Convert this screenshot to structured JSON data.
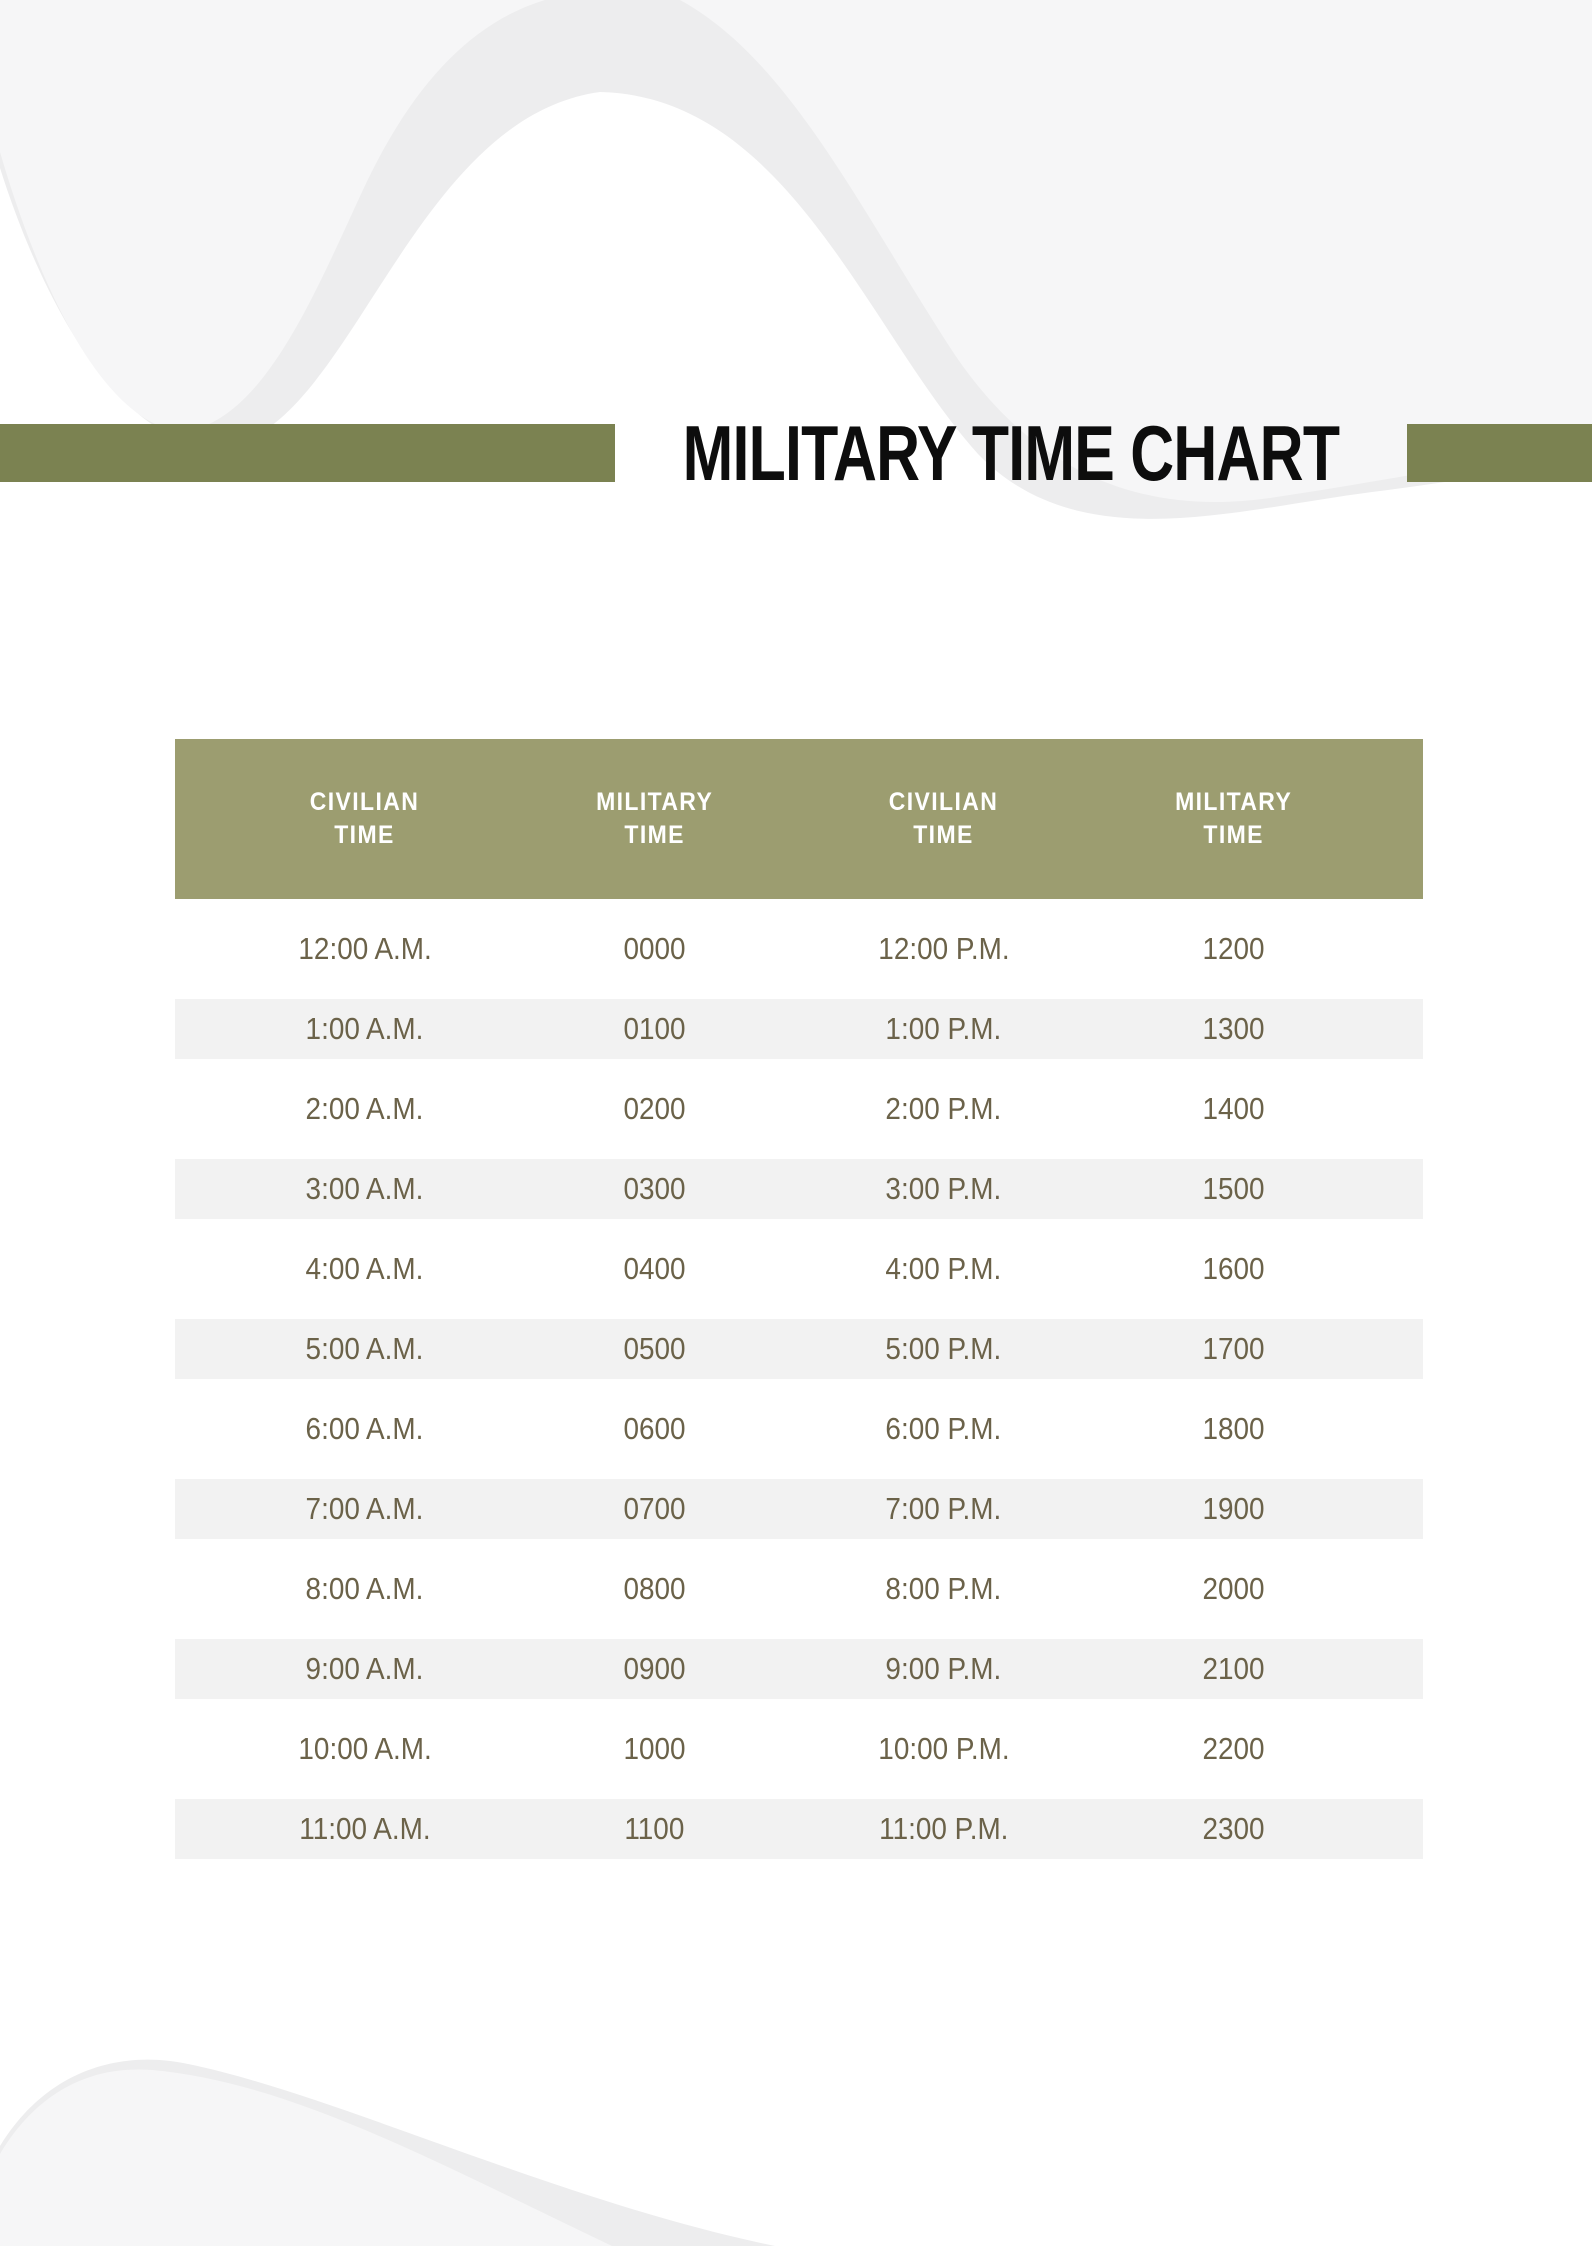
{
  "page": {
    "title": "MILITARY TIME CHART"
  },
  "table": {
    "headers": [
      "CIVILIAN\nTIME",
      "MILITARY\nTIME",
      "CIVILIAN\nTIME",
      "MILITARY\nTIME"
    ],
    "rows": [
      [
        "12:00 A.M.",
        "0000",
        "12:00 P.M.",
        "1200"
      ],
      [
        "1:00 A.M.",
        "0100",
        "1:00 P.M.",
        "1300"
      ],
      [
        "2:00 A.M.",
        "0200",
        "2:00 P.M.",
        "1400"
      ],
      [
        "3:00 A.M.",
        "0300",
        "3:00 P.M.",
        "1500"
      ],
      [
        "4:00 A.M.",
        "0400",
        "4:00 P.M.",
        "1600"
      ],
      [
        "5:00 A.M.",
        "0500",
        "5:00 P.M.",
        "1700"
      ],
      [
        "6:00 A.M.",
        "0600",
        "6:00 P.M.",
        "1800"
      ],
      [
        "7:00 A.M.",
        "0700",
        "7:00 P.M.",
        "1900"
      ],
      [
        "8:00 A.M.",
        "0800",
        "8:00 P.M.",
        "2000"
      ],
      [
        "9:00 A.M.",
        "0900",
        "9:00 P.M.",
        "2100"
      ],
      [
        "10:00 A.M.",
        "1000",
        "10:00 P.M.",
        "2200"
      ],
      [
        "11:00 A.M.",
        "1100",
        "11:00 P.M.",
        "2300"
      ]
    ]
  },
  "colors": {
    "accent_bar": "#7b8251",
    "header_bg": "#9c9d70",
    "header_text": "#ffffff",
    "row_text": "#6b6249",
    "row_stripe": "#f2f2f2",
    "title_text": "#0d0d0d",
    "wave_light": "#f6f6f7",
    "wave_dark": "#ededee"
  }
}
